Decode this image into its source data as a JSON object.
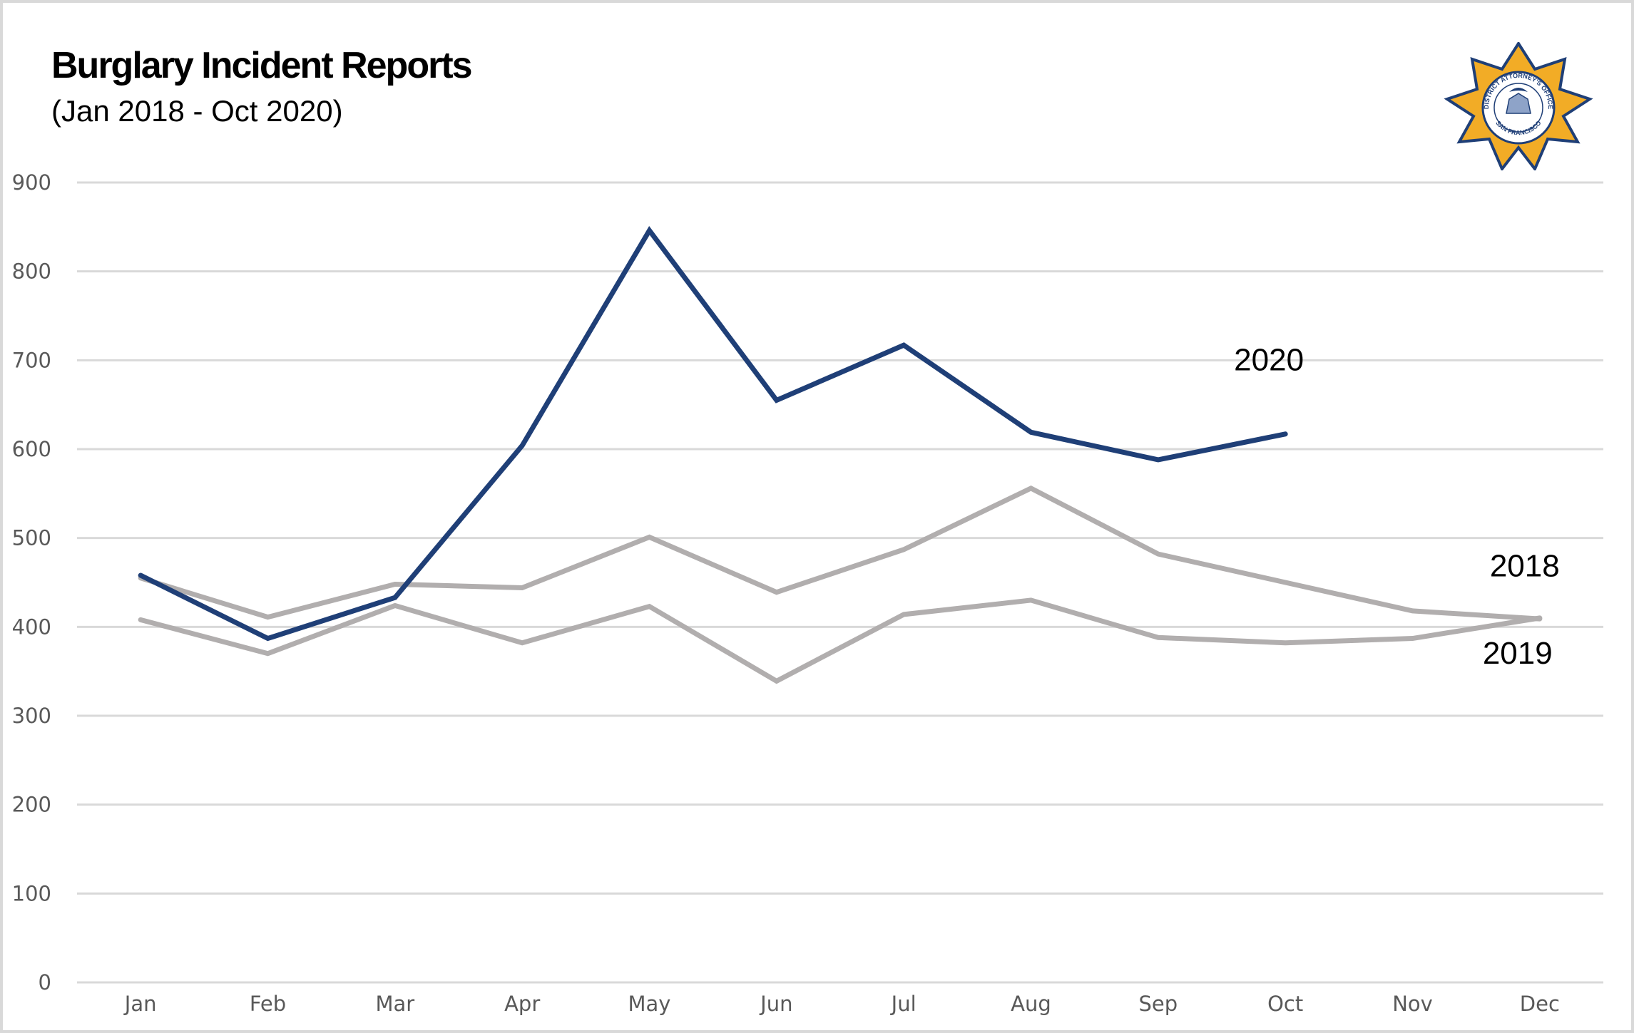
{
  "header": {
    "title": "Burglary Incident Reports",
    "subtitle": "(Jan 2018 - Oct 2020)"
  },
  "logo": {
    "name": "district-attorney-badge",
    "top_text": "DISTRICT ATTORNEY'S OFFICE",
    "bottom_text": "SAN FRANCISCO",
    "colors": {
      "star": "#f2ac26",
      "outline": "#1f3f77"
    }
  },
  "colors": {
    "series_2020": "#1f3f77",
    "series_prior": "#b1aeae",
    "grid": "#d9d9d9",
    "tick_text": "#595959"
  },
  "chart_data": {
    "type": "line",
    "title": "Burglary Incident Reports",
    "subtitle": "(Jan 2018 - Oct 2020)",
    "xlabel": "",
    "ylabel": "",
    "categories": [
      "Jan",
      "Feb",
      "Mar",
      "Apr",
      "May",
      "Jun",
      "Jul",
      "Aug",
      "Sep",
      "Oct",
      "Nov",
      "Dec"
    ],
    "yticks": [
      0,
      100,
      200,
      300,
      400,
      500,
      600,
      700,
      800,
      900
    ],
    "ylim": [
      0,
      900
    ],
    "grid": true,
    "legend": "direct-labels",
    "series": [
      {
        "name": "2018",
        "color": "#b1aeae",
        "values": [
          455,
          411,
          448,
          444,
          501,
          439,
          487,
          556,
          482,
          450,
          418,
          409
        ]
      },
      {
        "name": "2019",
        "color": "#b1aeae",
        "values": [
          408,
          370,
          424,
          382,
          423,
          339,
          414,
          430,
          388,
          382,
          387,
          410
        ]
      },
      {
        "name": "2020",
        "color": "#1f3f77",
        "values": [
          458,
          387,
          433,
          604,
          846,
          655,
          717,
          619,
          588,
          617,
          null,
          null
        ]
      }
    ]
  }
}
